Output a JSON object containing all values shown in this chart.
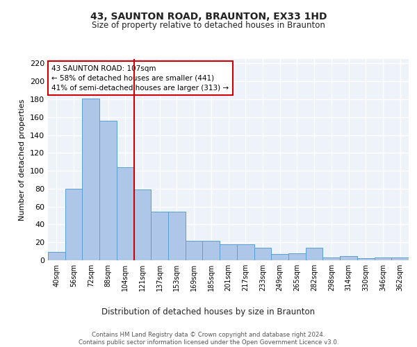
{
  "title1": "43, SAUNTON ROAD, BRAUNTON, EX33 1HD",
  "title2": "Size of property relative to detached houses in Braunton",
  "xlabel": "Distribution of detached houses by size in Braunton",
  "ylabel": "Number of detached properties",
  "categories": [
    "40sqm",
    "56sqm",
    "72sqm",
    "88sqm",
    "104sqm",
    "121sqm",
    "137sqm",
    "153sqm",
    "169sqm",
    "185sqm",
    "201sqm",
    "217sqm",
    "233sqm",
    "249sqm",
    "265sqm",
    "282sqm",
    "298sqm",
    "314sqm",
    "330sqm",
    "346sqm",
    "362sqm"
  ],
  "values": [
    9,
    80,
    181,
    156,
    104,
    79,
    54,
    54,
    22,
    22,
    18,
    18,
    14,
    7,
    8,
    14,
    3,
    5,
    2,
    3,
    3
  ],
  "bar_color": "#aec6e8",
  "bar_edge_color": "#5a9fd4",
  "vline_x": 4.5,
  "vline_color": "#cc0000",
  "annotation_text": "43 SAUNTON ROAD: 107sqm\n← 58% of detached houses are smaller (441)\n41% of semi-detached houses are larger (313) →",
  "annotation_box_color": "#ffffff",
  "annotation_box_edge": "#cc0000",
  "footer": "Contains HM Land Registry data © Crown copyright and database right 2024.\nContains public sector information licensed under the Open Government Licence v3.0.",
  "ylim": [
    0,
    225
  ],
  "yticks": [
    0,
    20,
    40,
    60,
    80,
    100,
    120,
    140,
    160,
    180,
    200,
    220
  ],
  "background_color": "#eef2f9",
  "grid_color": "#ffffff",
  "fig_bg": "#ffffff"
}
